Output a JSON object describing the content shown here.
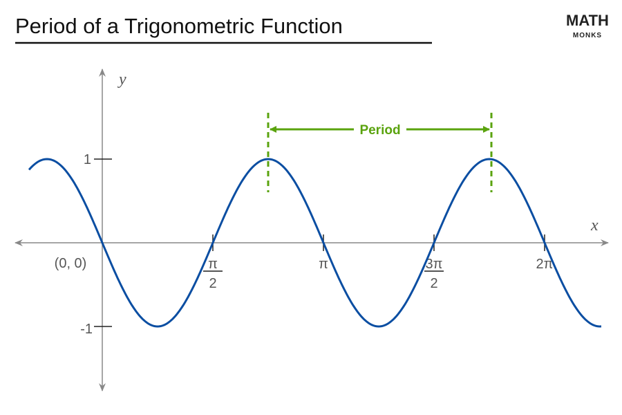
{
  "header": {
    "title": "Period of a Trigonometric Function"
  },
  "logo": {
    "word": "MATH",
    "sub": "MONKS"
  },
  "axes": {
    "x_label": "x",
    "y_label": "y",
    "origin_label": "(0, 0)",
    "y_ticks": [
      "1",
      "-1"
    ],
    "x_ticks": [
      {
        "num": "π",
        "den": "2"
      },
      {
        "label": "π"
      },
      {
        "num": "3π",
        "den": "2"
      },
      {
        "label": "2π"
      }
    ]
  },
  "annotation": {
    "label": "Period"
  }
}
